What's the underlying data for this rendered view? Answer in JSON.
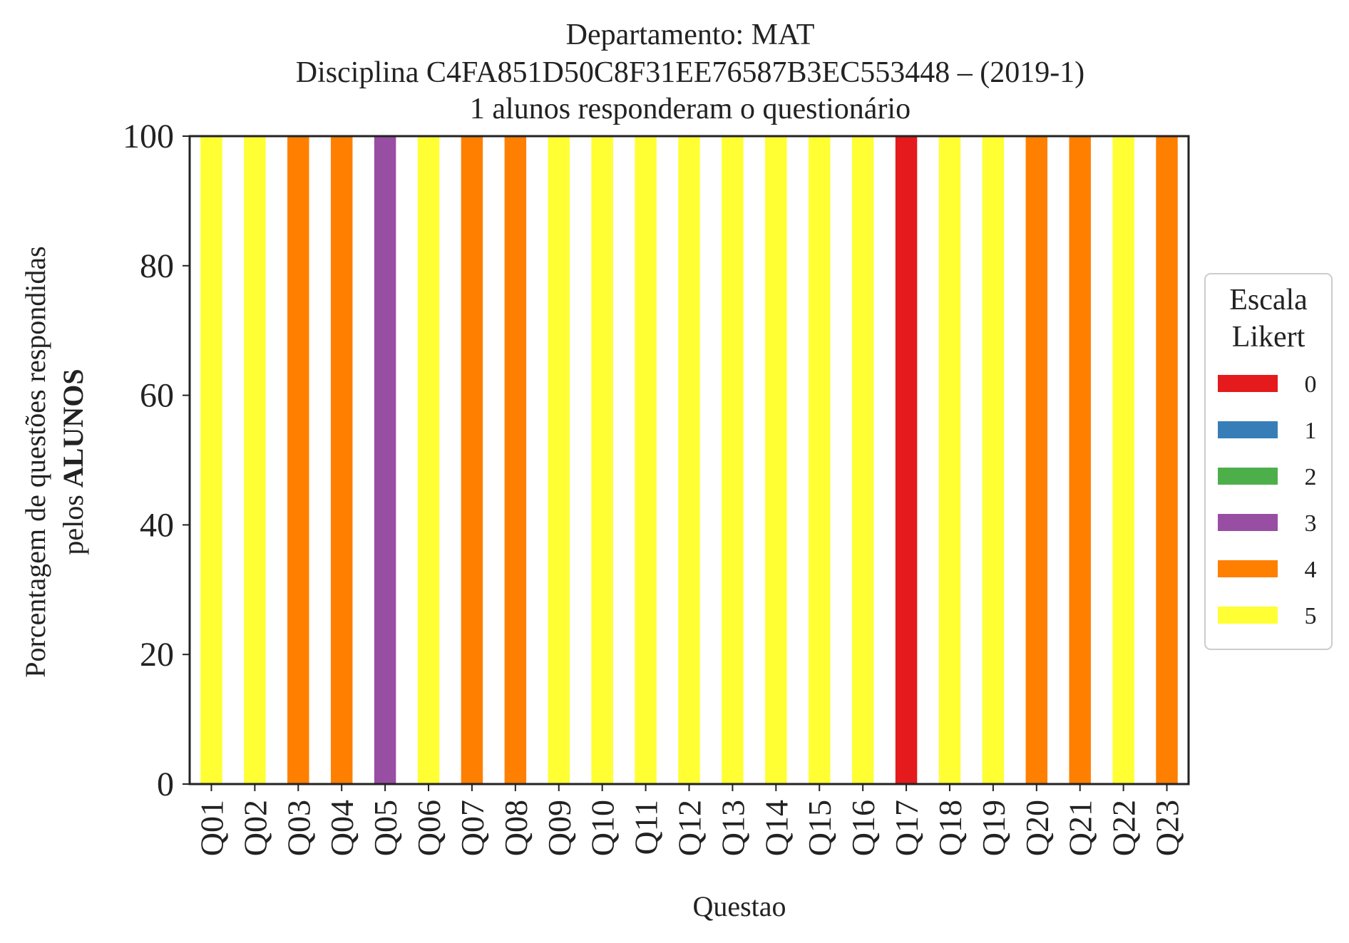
{
  "chart_data": {
    "type": "bar",
    "stacked": true,
    "title": [
      "Departamento: MAT",
      "Disciplina C4FA851D50C8F31EE76587B3EC553448 – (2019-1)",
      "1 alunos responderam o questionário"
    ],
    "xlabel": "Questao",
    "ylabel_line1": "Porcentagem de questões respondidas",
    "ylabel_line2_prefix": "pelos ",
    "ylabel_line2_bold": "ALUNOS",
    "ylim": [
      0,
      100
    ],
    "yticks": [
      "0",
      "20",
      "40",
      "60",
      "80",
      "100"
    ],
    "categories": [
      "Q01",
      "Q02",
      "Q03",
      "Q04",
      "Q05",
      "Q06",
      "Q07",
      "Q08",
      "Q09",
      "Q10",
      "Q11",
      "Q12",
      "Q13",
      "Q14",
      "Q15",
      "Q16",
      "Q17",
      "Q18",
      "Q19",
      "Q20",
      "Q21",
      "Q22",
      "Q23"
    ],
    "series": [
      {
        "name": "0",
        "color": "#e41a1c",
        "values": [
          0,
          0,
          0,
          0,
          0,
          0,
          0,
          0,
          0,
          0,
          0,
          0,
          0,
          0,
          0,
          0,
          100,
          0,
          0,
          0,
          0,
          0,
          0
        ]
      },
      {
        "name": "1",
        "color": "#377eb8",
        "values": [
          0,
          0,
          0,
          0,
          0,
          0,
          0,
          0,
          0,
          0,
          0,
          0,
          0,
          0,
          0,
          0,
          0,
          0,
          0,
          0,
          0,
          0,
          0
        ]
      },
      {
        "name": "2",
        "color": "#4daf4a",
        "values": [
          0,
          0,
          0,
          0,
          0,
          0,
          0,
          0,
          0,
          0,
          0,
          0,
          0,
          0,
          0,
          0,
          0,
          0,
          0,
          0,
          0,
          0,
          0
        ]
      },
      {
        "name": "3",
        "color": "#984ea3",
        "values": [
          0,
          0,
          0,
          0,
          100,
          0,
          0,
          0,
          0,
          0,
          0,
          0,
          0,
          0,
          0,
          0,
          0,
          0,
          0,
          0,
          0,
          0,
          0
        ]
      },
      {
        "name": "4",
        "color": "#ff7f00",
        "values": [
          0,
          0,
          100,
          100,
          0,
          0,
          100,
          100,
          0,
          0,
          0,
          0,
          0,
          0,
          0,
          0,
          0,
          0,
          0,
          100,
          100,
          0,
          100
        ]
      },
      {
        "name": "5",
        "color": "#ffff33",
        "values": [
          100,
          100,
          0,
          0,
          0,
          100,
          0,
          0,
          100,
          100,
          100,
          100,
          100,
          100,
          100,
          100,
          0,
          100,
          100,
          0,
          0,
          100,
          0
        ]
      }
    ],
    "legend": {
      "title": [
        "Escala",
        "Likert"
      ],
      "placement": "center-right outside"
    },
    "grid": false
  }
}
